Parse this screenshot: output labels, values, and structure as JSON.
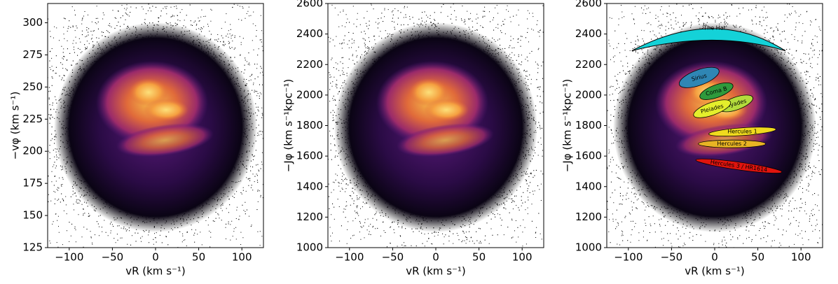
{
  "chart_data": [
    {
      "type": "density",
      "xlabel": "vR (km s⁻¹)",
      "ylabel": "−vφ (km s⁻¹)",
      "xlim": [
        -125,
        125
      ],
      "xticks": [
        {
          "value": -100,
          "label": "−100"
        },
        {
          "value": -50,
          "label": "−50"
        },
        0,
        50,
        100
      ],
      "ylim": [
        125,
        315
      ],
      "yticks": [
        125,
        150,
        175,
        200,
        225,
        250,
        275,
        300
      ]
    },
    {
      "type": "density",
      "xlabel": "vR (km s⁻¹)",
      "ylabel": "−Jφ (km s⁻¹kpc⁻¹)",
      "xlim": [
        -125,
        125
      ],
      "xticks": [
        {
          "value": -100,
          "label": "−100"
        },
        {
          "value": -50,
          "label": "−50"
        },
        0,
        50,
        100
      ],
      "ylim": [
        1000,
        2600
      ],
      "yticks": [
        1000,
        1200,
        1400,
        1600,
        1800,
        2000,
        2200,
        2400,
        2600
      ]
    },
    {
      "type": "density",
      "xlabel": "vR (km s⁻¹)",
      "ylabel": "−Jφ (km s⁻¹kpc⁻¹)",
      "xlim": [
        -125,
        125
      ],
      "xticks": [
        {
          "value": -100,
          "label": "−100"
        },
        {
          "value": -50,
          "label": "−50"
        },
        0,
        50,
        100
      ],
      "ylim": [
        1000,
        2600
      ],
      "yticks": [
        1000,
        1200,
        1400,
        1600,
        1800,
        2000,
        2200,
        2400,
        2600
      ],
      "annotations": [
        {
          "text": "'The Hat'",
          "x": 0,
          "y": 2440,
          "color": "#14d2d8"
        },
        {
          "text": "Sirius",
          "x": -18,
          "y": 2115,
          "color": "#2f86b4"
        },
        {
          "text": "Coma B",
          "x": 2,
          "y": 2025,
          "color": "#2f9a3c"
        },
        {
          "text": "Hyades",
          "x": 25,
          "y": 1945,
          "color": "#b4dc3c"
        },
        {
          "text": "Pleiades",
          "x": -3,
          "y": 1910,
          "color": "#e4ee2c"
        },
        {
          "text": "Hercules 1",
          "x": 32,
          "y": 1760,
          "color": "#f0da1e"
        },
        {
          "text": "Hercules 2",
          "x": 20,
          "y": 1680,
          "color": "#e8b424"
        },
        {
          "text": "Hercules 3 / HR1614",
          "x": 28,
          "y": 1535,
          "color": "#e0140e"
        }
      ]
    }
  ]
}
